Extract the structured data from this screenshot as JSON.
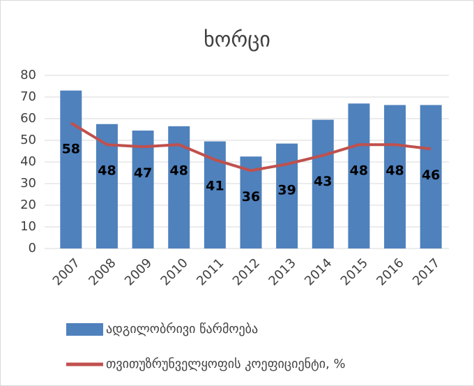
{
  "chart_data": {
    "type": "bar",
    "title": "ხორცი",
    "categories": [
      "2007",
      "2008",
      "2009",
      "2010",
      "2011",
      "2012",
      "2013",
      "2014",
      "2015",
      "2016",
      "2017"
    ],
    "series": [
      {
        "name": "ადგილობრივი წარმოება",
        "type": "bar",
        "color": "#4f81bd",
        "values": [
          73,
          57.5,
          54.5,
          56.5,
          49.5,
          42.5,
          48.5,
          59.5,
          67,
          66.3,
          66.3
        ]
      },
      {
        "name": "თვითუზრუნველყოფის კოეფიციენტი, %",
        "type": "line",
        "color": "#c0504d",
        "values": [
          58,
          48,
          47,
          48,
          41,
          36,
          39,
          43,
          48,
          48,
          46
        ],
        "data_labels": true
      }
    ],
    "ylim": [
      0,
      80
    ],
    "yticks": [
      0,
      10,
      20,
      30,
      40,
      50,
      60,
      70,
      80
    ],
    "grid": true,
    "legend": "bottom"
  }
}
